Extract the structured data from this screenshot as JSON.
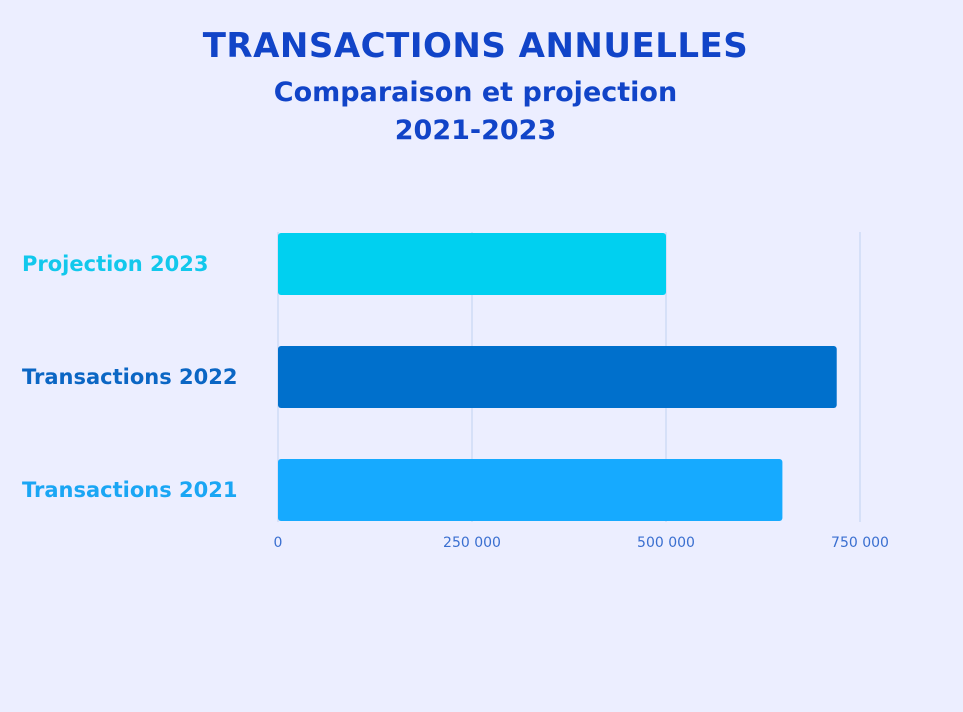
{
  "colors": {
    "background": "#eceeff",
    "title": "#1144c8",
    "grid": "#c7d6f2",
    "tick": "#3a6fd0"
  },
  "chart_data": {
    "type": "bar",
    "orientation": "horizontal",
    "title": "TRANSACTIONS ANNUELLES",
    "subtitle": "Comparaison et projection",
    "subtitle2": "2021-2023",
    "categories": [
      "Projection 2023",
      "Transactions 2022",
      "Transactions 2021"
    ],
    "values": [
      500000,
      720000,
      650000
    ],
    "bar_colors": [
      "#00d0f0",
      "#0070cc",
      "#16aaff"
    ],
    "label_colors": [
      "#12c8ec",
      "#0b66c4",
      "#1aa6f4"
    ],
    "xlim": [
      0,
      750000
    ],
    "xticks": [
      0,
      250000,
      500000,
      750000
    ],
    "xtick_labels": [
      "0",
      "250 000",
      "500 000",
      "750 000"
    ],
    "grid": "vertical",
    "legend": "none"
  }
}
